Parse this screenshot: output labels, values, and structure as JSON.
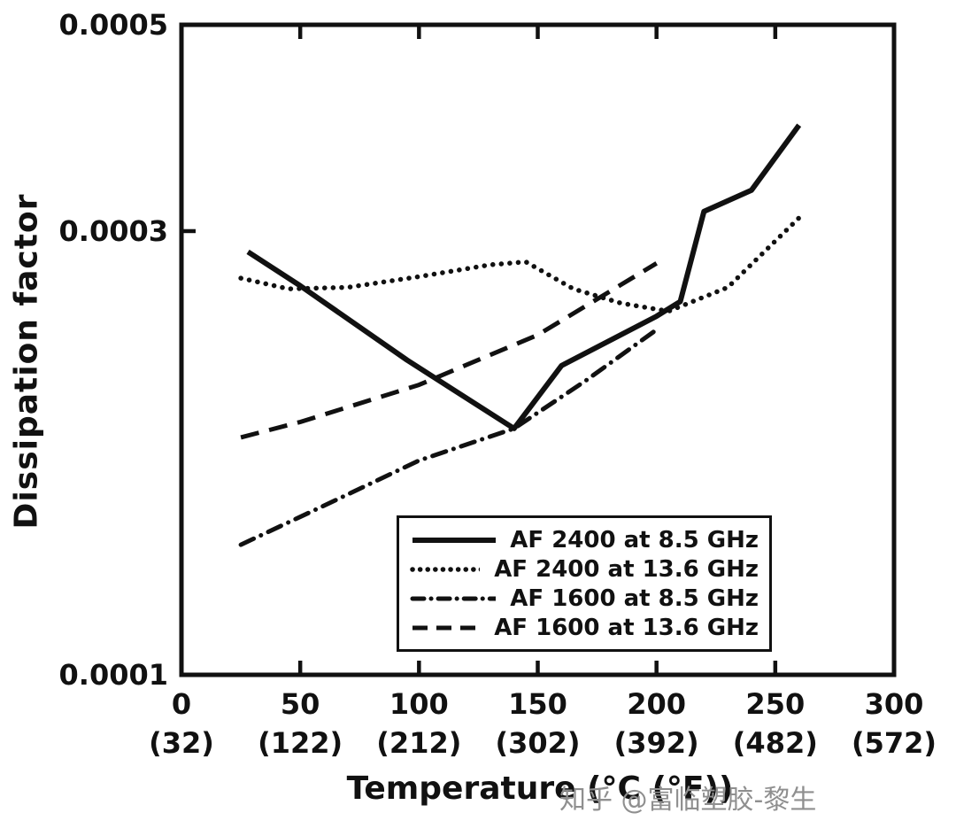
{
  "watermark": "知乎 @富临塑胶-黎生",
  "chart_data": {
    "type": "line",
    "title": "",
    "xlabel": "Temperature (°C (°F))",
    "ylabel": "Dissipation factor",
    "xlim": [
      0,
      300
    ],
    "ylim": [
      0.0001,
      0.0005
    ],
    "y_scale": "log",
    "grid": false,
    "legend_position": "inside-bottom-center",
    "x_tick_values": [
      0,
      50,
      100,
      150,
      200,
      250,
      300
    ],
    "x_tick_labels_celsius": [
      "0",
      "50",
      "100",
      "150",
      "200",
      "250",
      "300"
    ],
    "x_tick_labels_fahrenheit": [
      "(32)",
      "(122)",
      "(212)",
      "(302)",
      "(392)",
      "(482)",
      "(572)"
    ],
    "y_tick_values": [
      0.0005,
      0.0003,
      0.0001
    ],
    "y_tick_labels": [
      "0.0005",
      "0.0003",
      "0.0001"
    ],
    "series": [
      {
        "name": "AF 2400 at 8.5 GHz",
        "style": "solid",
        "x": [
          28,
          50,
          95,
          140,
          160,
          200,
          210,
          220,
          240,
          260
        ],
        "y": [
          0.000285,
          0.000262,
          0.000218,
          0.000184,
          0.000215,
          0.000243,
          0.000252,
          0.000315,
          0.000332,
          0.00039
        ]
      },
      {
        "name": "AF 2400 at 13.6 GHz",
        "style": "dotted",
        "x": [
          25,
          45,
          70,
          100,
          130,
          145,
          165,
          185,
          205,
          230,
          260
        ],
        "y": [
          0.000267,
          0.00026,
          0.000261,
          0.000268,
          0.000276,
          0.000278,
          0.00026,
          0.000251,
          0.000246,
          0.000261,
          0.00031
        ]
      },
      {
        "name": "AF 1600 at 8.5 GHz",
        "style": "dashdot",
        "x": [
          25,
          60,
          100,
          140,
          170,
          200
        ],
        "y": [
          0.000138,
          0.000152,
          0.00017,
          0.000184,
          0.000207,
          0.000235
        ]
      },
      {
        "name": "AF 1600 at 13.6 GHz",
        "style": "dashed",
        "x": [
          25,
          50,
          100,
          150,
          200
        ],
        "y": [
          0.00018,
          0.000187,
          0.000205,
          0.000232,
          0.000277
        ]
      }
    ]
  }
}
